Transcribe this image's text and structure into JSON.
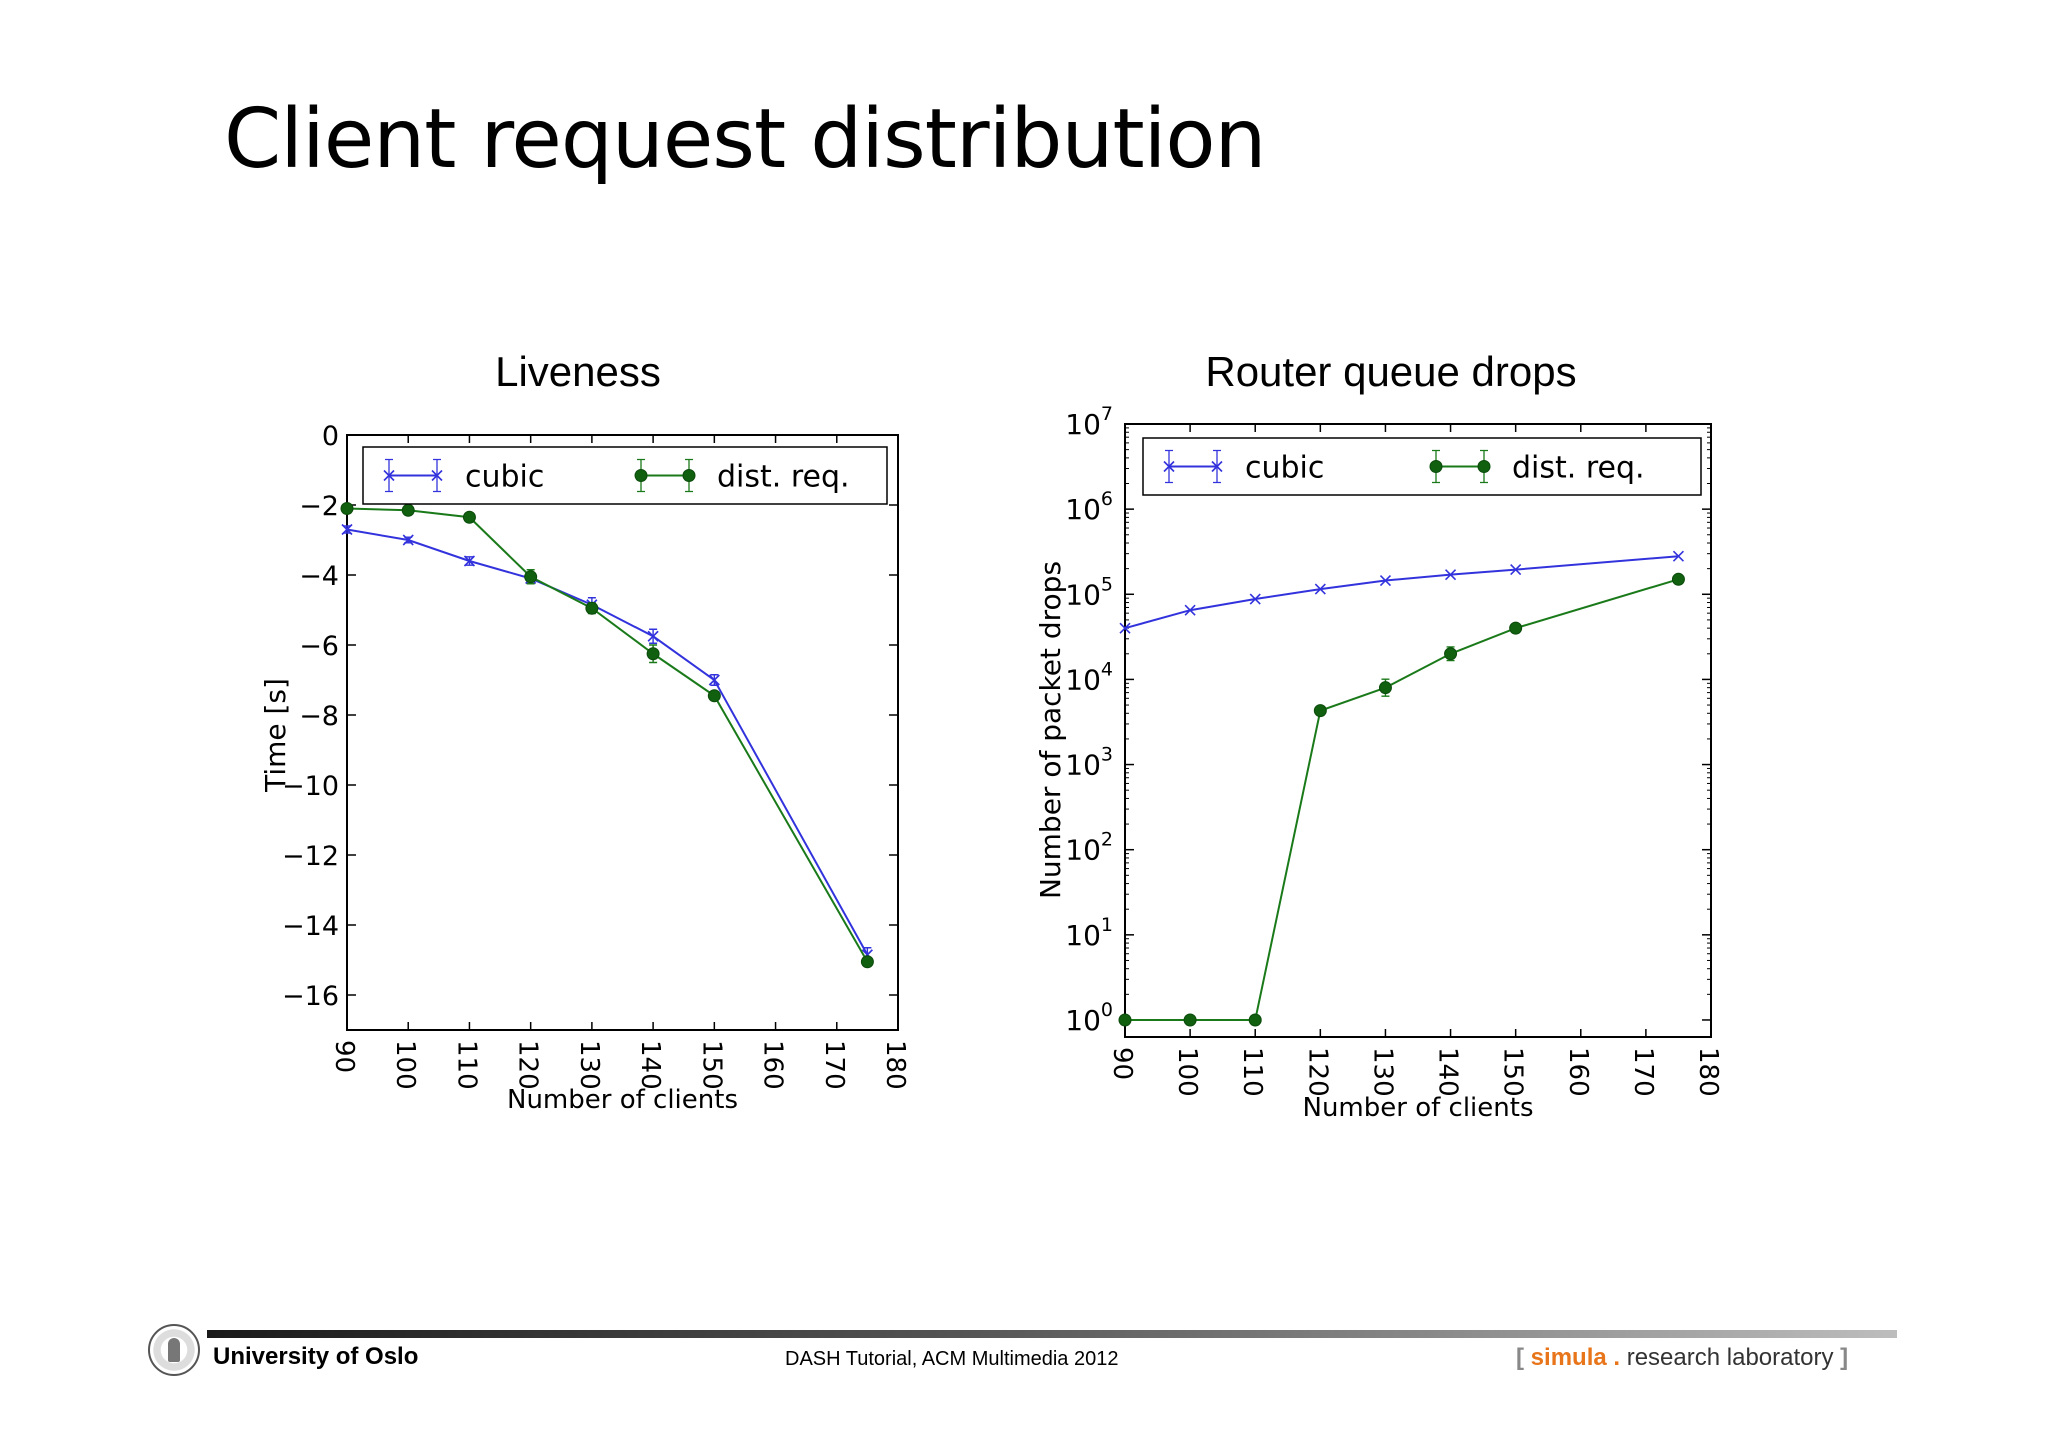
{
  "slide": {
    "title": "Client request distribution",
    "footer": {
      "university": "University of Oslo",
      "event": "DASH Tutorial, ACM Multimedia 2012",
      "lab_open": "[",
      "lab_brand": "simula",
      "lab_dot": ".",
      "lab_rest": "research laboratory",
      "lab_close": "]"
    }
  },
  "colors": {
    "cubic": "#3333dd",
    "dist": "#1a7a1a",
    "dist_marker": "#106010",
    "brand": "#e8751a"
  },
  "chart_data": [
    {
      "type": "line",
      "title": "Liveness",
      "xlabel": "Number of clients",
      "ylabel": "Time [s]",
      "xlim": [
        90,
        180
      ],
      "ylim": [
        -17,
        0
      ],
      "xticks": [
        90,
        100,
        110,
        120,
        130,
        140,
        150,
        160,
        170,
        180
      ],
      "yticks": [
        0,
        -2,
        -4,
        -6,
        -8,
        -10,
        -12,
        -14,
        -16
      ],
      "ytick_labels": [
        "0",
        "−2",
        "−4",
        "−6",
        "−8",
        "−10",
        "−12",
        "−14",
        "−16"
      ],
      "legend": {
        "position": "top",
        "entries": [
          "cubic",
          "dist. req."
        ]
      },
      "series": [
        {
          "name": "cubic",
          "marker": "x",
          "x": [
            90,
            100,
            110,
            120,
            130,
            140,
            150,
            175
          ],
          "y": [
            -2.7,
            -3.0,
            -3.6,
            -4.1,
            -4.85,
            -5.75,
            -7.0,
            -14.85
          ],
          "err": [
            0.1,
            0.08,
            0.12,
            0.1,
            0.2,
            0.2,
            0.15,
            0.2
          ]
        },
        {
          "name": "dist. req.",
          "marker": "o",
          "x": [
            90,
            100,
            110,
            120,
            130,
            140,
            150,
            175
          ],
          "y": [
            -2.1,
            -2.15,
            -2.35,
            -4.05,
            -4.95,
            -6.25,
            -7.45,
            -15.05
          ],
          "err": [
            0.05,
            0.05,
            0.05,
            0.2,
            0.15,
            0.25,
            0.1,
            0.1
          ]
        }
      ]
    },
    {
      "type": "line",
      "scale_y": "log",
      "title": "Router queue drops",
      "xlabel": "Number of clients",
      "ylabel": "Number of packet drops",
      "xlim": [
        90,
        180
      ],
      "ylim_log10": [
        -0.2,
        7
      ],
      "xticks": [
        90,
        100,
        110,
        120,
        130,
        140,
        150,
        160,
        170,
        180
      ],
      "yticks_exp": [
        0,
        1,
        2,
        3,
        4,
        5,
        6,
        7
      ],
      "ytick_base": "10",
      "legend": {
        "position": "top",
        "entries": [
          "cubic",
          "dist. req."
        ]
      },
      "series": [
        {
          "name": "cubic",
          "marker": "x",
          "x": [
            90,
            100,
            110,
            120,
            130,
            140,
            150,
            175
          ],
          "y": [
            40000,
            65000,
            88000,
            115000,
            145000,
            170000,
            195000,
            280000
          ],
          "err_log": [
            0,
            0,
            0,
            0,
            0,
            0,
            0,
            0
          ]
        },
        {
          "name": "dist. req.",
          "marker": "o",
          "x": [
            90,
            100,
            110,
            120,
            130,
            140,
            150,
            175
          ],
          "y": [
            1,
            1,
            1,
            4300,
            8000,
            20000,
            40000,
            150000
          ],
          "err_log": [
            0,
            0,
            0,
            0.04,
            0.1,
            0.08,
            0.03,
            0.03
          ]
        }
      ]
    }
  ]
}
